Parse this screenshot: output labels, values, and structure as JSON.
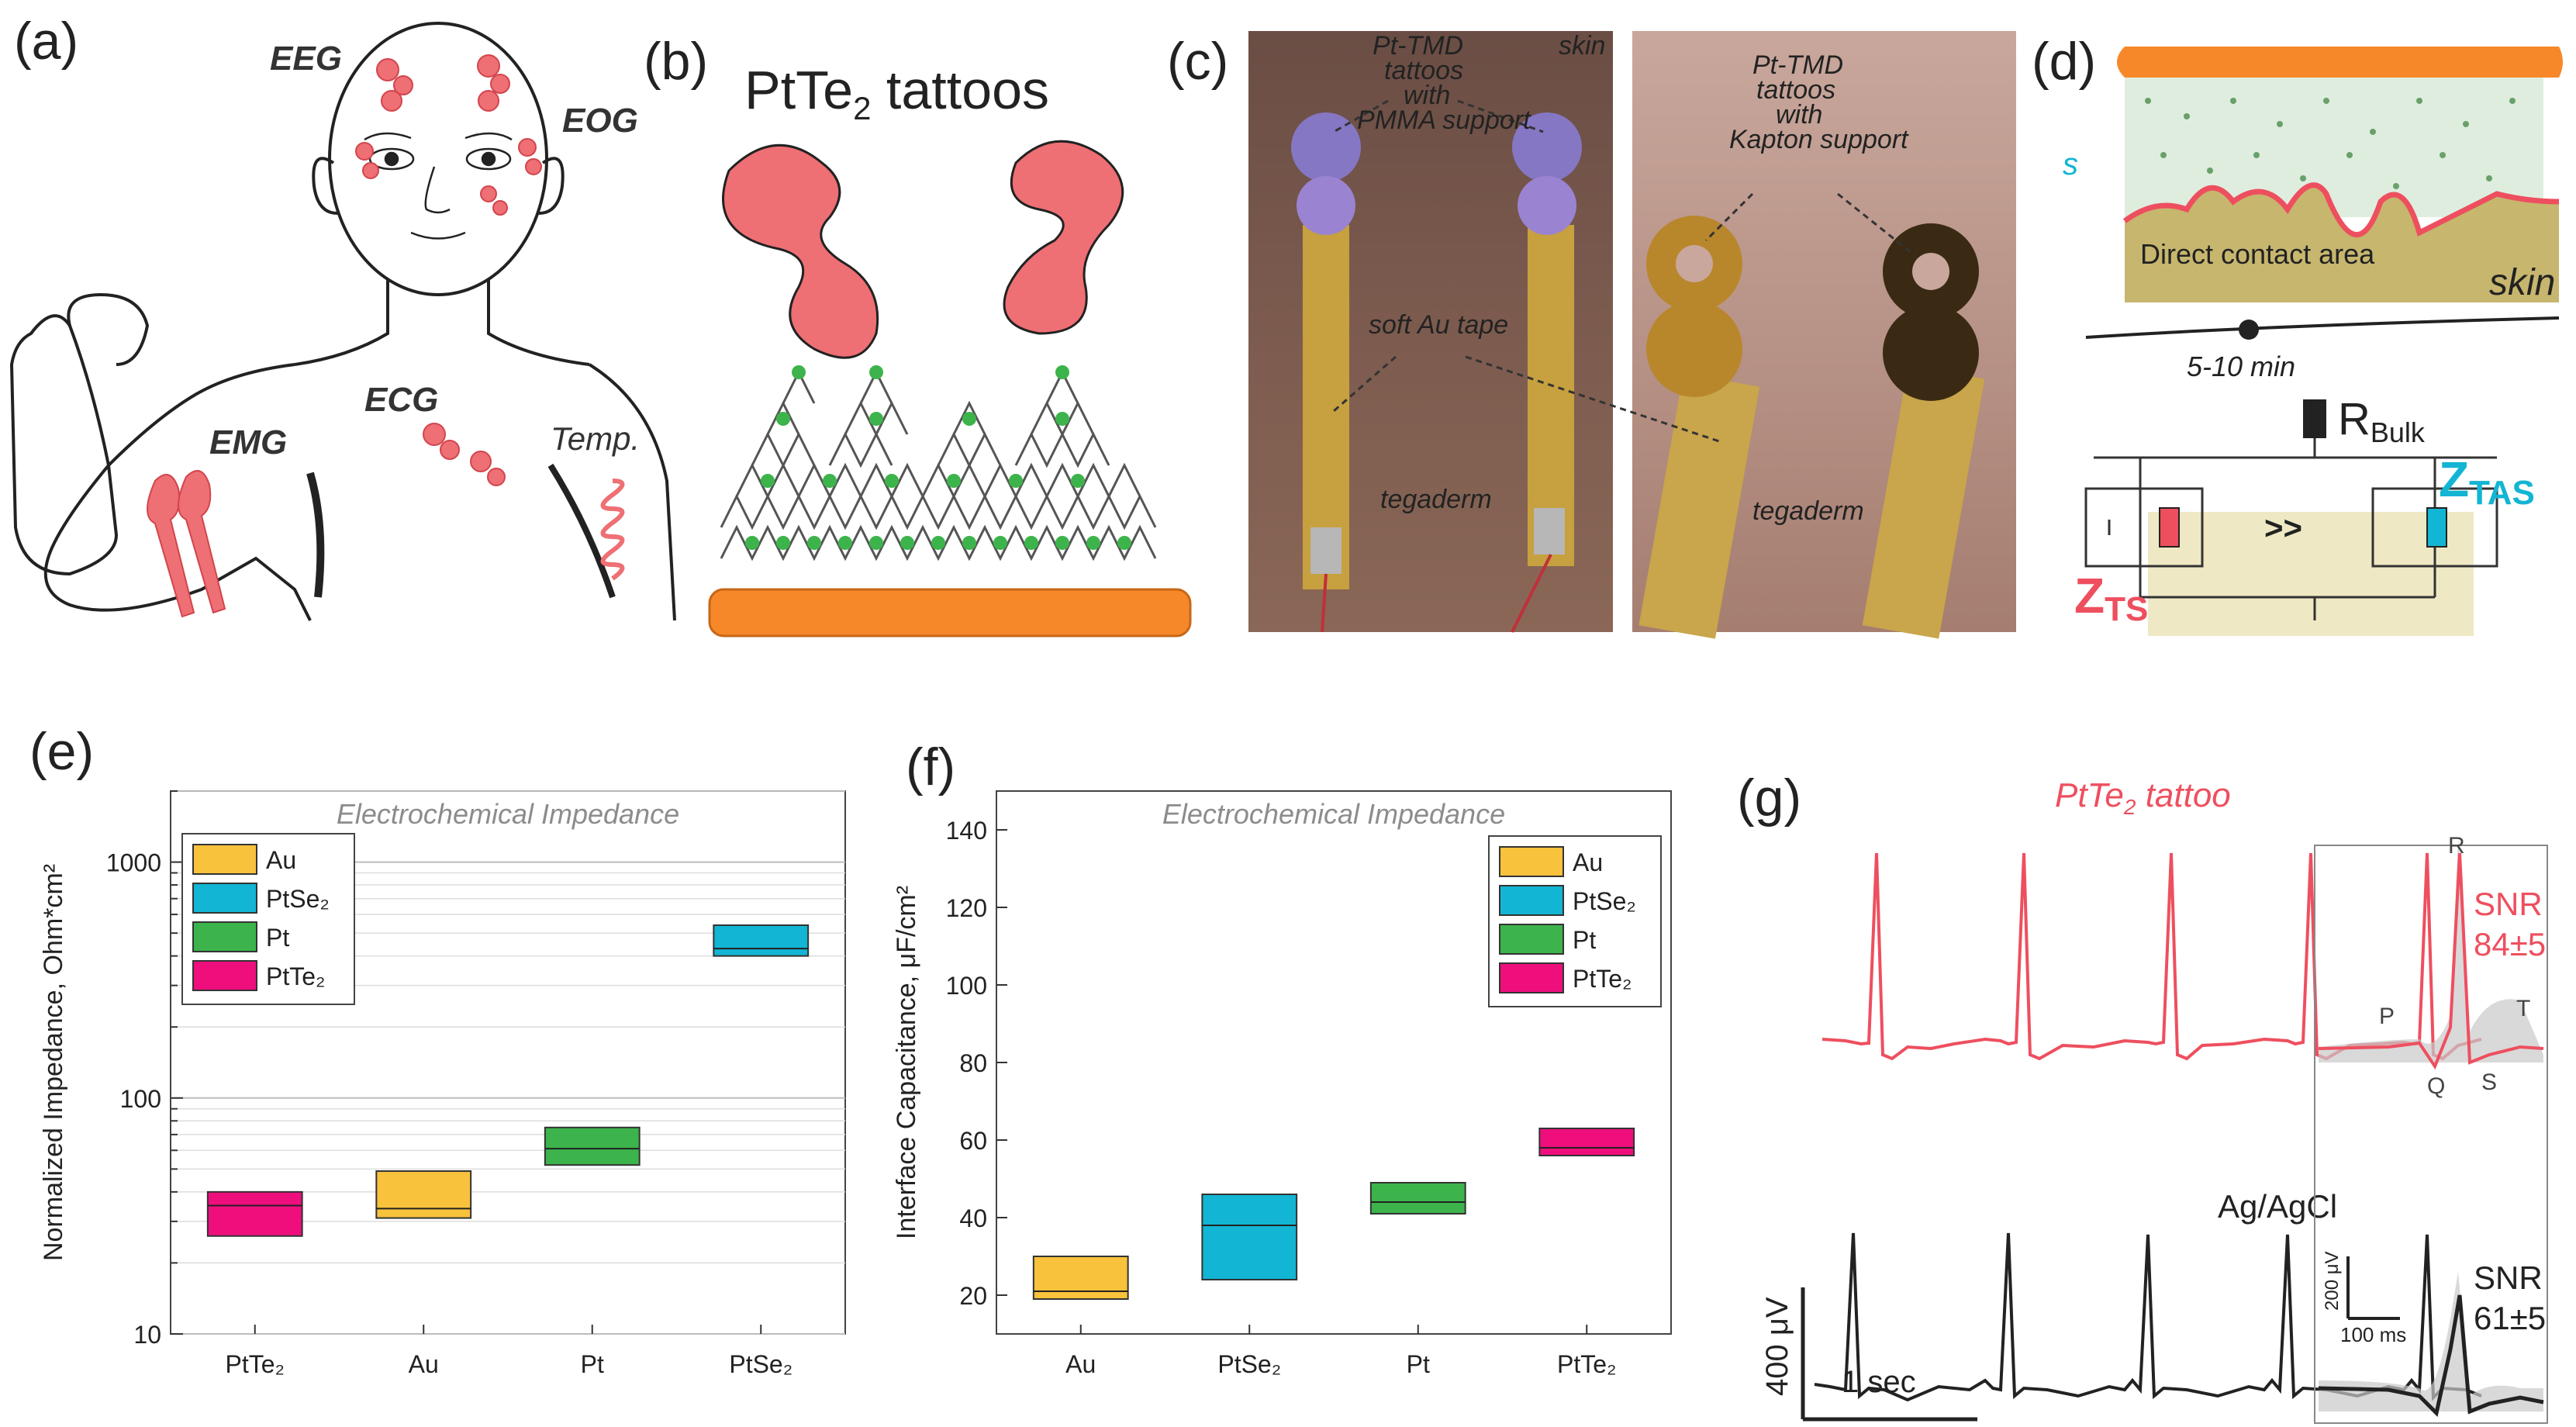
{
  "panels": {
    "a": "(a)",
    "b": "(b)",
    "c": "(c)",
    "d": "(d)",
    "e": "(e)",
    "f": "(f)",
    "g": "(g)"
  },
  "panel_a": {
    "eeg": "EEG",
    "eog": "EOG",
    "emg": "EMG",
    "ecg": "ECG",
    "temp": "Temp."
  },
  "panel_b": {
    "title": "PtTe",
    "title_sub": "2",
    "title_tail": " tattoos"
  },
  "panel_c": {
    "left_note_1": "Pt-TMD",
    "left_note_2": "tattoos",
    "left_note_3": "with",
    "left_note_4": "PMMA support",
    "skin": "skin",
    "au_tape": "soft Au tape",
    "tegaderm_left": "tegaderm",
    "right_note_1": "Pt-TMD",
    "right_note_2": "tattoos",
    "right_note_3": "with",
    "right_note_4": "Kapton support",
    "tegaderm_right": "tegaderm"
  },
  "panel_d": {
    "s": "s",
    "contact": "Direct contact area",
    "skin": "skin",
    "time": "5-10 min",
    "r": "R",
    "r_sub": "Bulk",
    "zts": "Z",
    "zts_sub": "TS",
    "ztas": "Z",
    "ztas_sub": "TAS",
    "gg": ">>"
  },
  "panel_g": {
    "title": "PtTe",
    "title_sub": "2",
    "title_tail": " tattoo",
    "ref": "Ag/AgCl",
    "snr1_a": "SNR",
    "snr1_b": "84±5",
    "snr2_a": "SNR",
    "snr2_b": "61±5",
    "p": "P",
    "q": "Q",
    "r": "R",
    "s": "S",
    "t": "T",
    "scale_v": "400 μV",
    "scale_t": "1 sec",
    "inset_v": "200 μV",
    "inset_t": "100 ms"
  },
  "colors": {
    "au": "#f9c23c",
    "ptse2": "#12b5d3",
    "pt": "#3cb44b",
    "ptte2": "#ee0f7d",
    "red": "#ee4f5f",
    "orange": "#f6882a"
  },
  "chart_data": [
    {
      "type": "box",
      "title": "Electrochemical Impedance",
      "ylabel": "Normalized Impedance, Ohm*cm²",
      "yscale": "log",
      "ylim": [
        10,
        2000
      ],
      "yticks": [
        "10",
        "100",
        "1000"
      ],
      "categories": [
        "PtTe₂",
        "Au",
        "Pt",
        "PtSe₂"
      ],
      "legend": [
        "Au",
        "PtSe₂",
        "Pt",
        "PtTe₂"
      ],
      "boxes": [
        {
          "name": "PtTe₂",
          "q1": 26,
          "median": 35,
          "q3": 40
        },
        {
          "name": "Au",
          "q1": 31,
          "median": 34,
          "q3": 49
        },
        {
          "name": "Pt",
          "q1": 52,
          "median": 61,
          "q3": 75
        },
        {
          "name": "PtSe₂",
          "q1": 400,
          "median": 430,
          "q3": 540
        }
      ]
    },
    {
      "type": "box",
      "title": "Electrochemical Impedance",
      "ylabel": "Interface Capacitance, μF/cm²",
      "ylim": [
        10,
        150
      ],
      "yticks": [
        "20",
        "40",
        "60",
        "80",
        "100",
        "120",
        "140"
      ],
      "categories": [
        "Au",
        "PtSe₂",
        "Pt",
        "PtTe₂"
      ],
      "legend": [
        "Au",
        "PtSe₂",
        "Pt",
        "PtTe₂"
      ],
      "boxes": [
        {
          "name": "Au",
          "q1": 19,
          "median": 21,
          "q3": 30
        },
        {
          "name": "PtSe₂",
          "q1": 24,
          "median": 38,
          "q3": 46
        },
        {
          "name": "Pt",
          "q1": 41,
          "median": 44,
          "q3": 49
        },
        {
          "name": "PtTe₂",
          "q1": 56,
          "median": 58,
          "q3": 63
        }
      ]
    }
  ]
}
